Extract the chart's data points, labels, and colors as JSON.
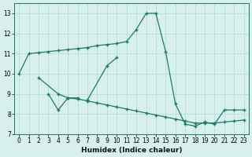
{
  "xlabel": "Humidex (Indice chaleur)",
  "bg_color": "#d8f0ec",
  "grid_color": "#b8dcd6",
  "line_color": "#1a7a6a",
  "xlim": [
    -0.5,
    23.5
  ],
  "ylim": [
    7,
    13.5
  ],
  "yticks": [
    7,
    8,
    9,
    10,
    11,
    12,
    13
  ],
  "xticks": [
    0,
    1,
    2,
    3,
    4,
    5,
    6,
    7,
    8,
    9,
    10,
    11,
    12,
    13,
    14,
    15,
    16,
    17,
    18,
    19,
    20,
    21,
    22,
    23
  ],
  "series1": {
    "x": [
      0,
      1,
      2,
      3,
      4,
      5,
      6,
      7,
      8,
      9,
      10,
      11,
      12,
      13,
      14,
      15,
      16,
      17,
      18,
      19,
      20,
      21,
      22,
      23
    ],
    "y": [
      10.0,
      11.0,
      11.05,
      11.1,
      11.15,
      11.2,
      11.25,
      11.3,
      11.4,
      11.45,
      11.5,
      11.6,
      12.2,
      13.0,
      13.0,
      11.1,
      8.5,
      7.5,
      7.4,
      7.6,
      7.5,
      8.2,
      8.2,
      8.2
    ]
  },
  "series2": {
    "x": [
      2,
      4,
      5,
      6,
      7,
      9,
      10
    ],
    "y": [
      9.8,
      9.0,
      8.8,
      8.8,
      8.7,
      10.4,
      10.8
    ]
  },
  "series3": {
    "x": [
      3,
      4,
      5,
      6,
      7,
      8,
      9,
      10,
      11,
      12,
      13,
      14,
      15,
      16,
      17,
      18,
      19,
      20,
      21,
      22,
      23
    ],
    "y": [
      9.0,
      8.2,
      8.8,
      8.75,
      8.65,
      8.55,
      8.45,
      8.35,
      8.25,
      8.15,
      8.05,
      7.95,
      7.85,
      7.75,
      7.65,
      7.55,
      7.55,
      7.55,
      7.6,
      7.65,
      7.7
    ]
  }
}
